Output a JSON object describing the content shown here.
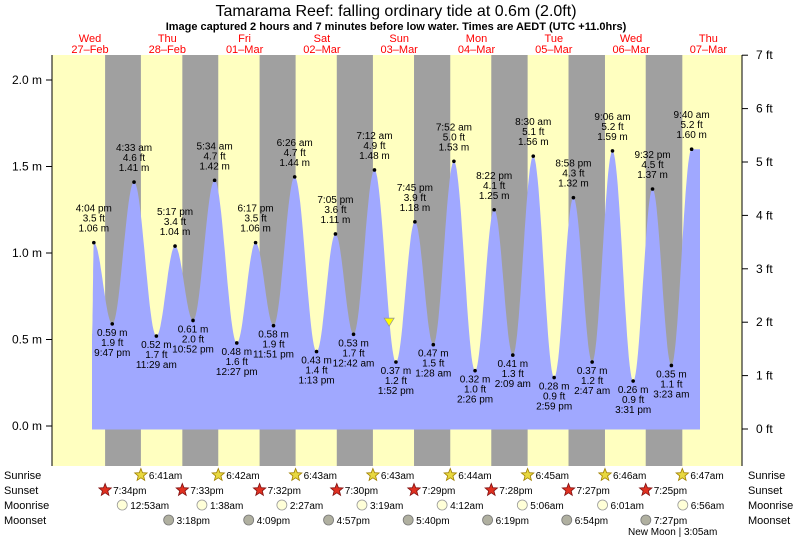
{
  "page": {
    "title": "Tamarama Reef: falling  ordinary tide at 0.6m (2.0ft)",
    "subtitle": "Image captured 2 hours and 7 minutes before low water. Times are AEDT (UTC +11.0hrs)"
  },
  "colors": {
    "day": "#ffffc0",
    "night": "#a0a0a0",
    "tide": "#a0a8ff",
    "day_label": "#ff0000",
    "current_marker": "#ffff00"
  },
  "chart_data": {
    "type": "area",
    "title": "Tamarama Reef: falling  ordinary tide at 0.6m (2.0ft)",
    "y_left_unit": "m",
    "y_right_unit": "ft",
    "ylim_m": [
      -0.18,
      2.1
    ],
    "y_left_ticks": [
      0.0,
      0.5,
      1.0,
      1.5,
      2.0
    ],
    "y_left_tick_labels": [
      "0.0 m",
      "0.5 m",
      "1.0 m",
      "1.5 m",
      "2.0 m"
    ],
    "y_right_ticks_ft": [
      0,
      1,
      2,
      3,
      4,
      5,
      6,
      7
    ],
    "y_right_tick_labels": [
      "0 ft",
      "1 ft",
      "2 ft",
      "3 ft",
      "4 ft",
      "5 ft",
      "6 ft",
      "7 ft"
    ],
    "x_start": "27-Feb 12:00pm",
    "days": [
      {
        "dow": "Wed",
        "date": "27–Feb"
      },
      {
        "dow": "Thu",
        "date": "28–Feb"
      },
      {
        "dow": "Fri",
        "date": "01–Mar"
      },
      {
        "dow": "Sat",
        "date": "02–Mar"
      },
      {
        "dow": "Sun",
        "date": "03–Mar"
      },
      {
        "dow": "Mon",
        "date": "04–Mar"
      },
      {
        "dow": "Tue",
        "date": "05–Mar"
      },
      {
        "dow": "Wed",
        "date": "06–Mar"
      },
      {
        "dow": "Thu",
        "date": "07–Mar"
      }
    ],
    "tides": [
      {
        "type": "high",
        "day": 27,
        "time": "4:04 pm",
        "ft": "3.5 ft",
        "m": 1.06,
        "label_m": "1.06 m"
      },
      {
        "type": "low",
        "day": 27,
        "time": "9:47 pm",
        "ft": "1.9 ft",
        "m": 0.59,
        "label_m": "0.59 m"
      },
      {
        "type": "high",
        "day": 28,
        "time": "4:33 am",
        "ft": "4.6 ft",
        "m": 1.41,
        "label_m": "1.41 m"
      },
      {
        "type": "low",
        "day": 28,
        "time": "11:29 am",
        "ft": "1.7 ft",
        "m": 0.52,
        "label_m": "0.52 m"
      },
      {
        "type": "high",
        "day": 28,
        "time": "5:17 pm",
        "ft": "3.4 ft",
        "m": 1.04,
        "label_m": "1.04 m"
      },
      {
        "type": "low",
        "day": 28,
        "time": "10:52 pm",
        "ft": "2.0 ft",
        "m": 0.61,
        "label_m": "0.61 m"
      },
      {
        "type": "high",
        "day": 29,
        "time": "5:34 am",
        "ft": "4.7 ft",
        "m": 1.42,
        "label_m": "1.42 m"
      },
      {
        "type": "low",
        "day": 29,
        "time": "12:27 pm",
        "ft": "1.6 ft",
        "m": 0.48,
        "label_m": "0.48 m"
      },
      {
        "type": "high",
        "day": 29,
        "time": "6:17 pm",
        "ft": "3.5 ft",
        "m": 1.06,
        "label_m": "1.06 m"
      },
      {
        "type": "low",
        "day": 29,
        "time": "11:51 pm",
        "ft": "1.9 ft",
        "m": 0.58,
        "label_m": "0.58 m"
      },
      {
        "type": "high",
        "day": 30,
        "time": "6:26 am",
        "ft": "4.7 ft",
        "m": 1.44,
        "label_m": "1.44 m"
      },
      {
        "type": "low",
        "day": 30,
        "time": "1:13 pm",
        "ft": "1.4 ft",
        "m": 0.43,
        "label_m": "0.43 m"
      },
      {
        "type": "high",
        "day": 30,
        "time": "7:05 pm",
        "ft": "3.6 ft",
        "m": 1.11,
        "label_m": "1.11 m"
      },
      {
        "type": "low",
        "day": 31,
        "time": "12:42 am",
        "ft": "1.7 ft",
        "m": 0.53,
        "label_m": "0.53 m"
      },
      {
        "type": "high",
        "day": 31,
        "time": "7:12 am",
        "ft": "4.9 ft",
        "m": 1.48,
        "label_m": "1.48 m"
      },
      {
        "type": "low",
        "day": 31,
        "time": "1:52 pm",
        "ft": "1.2 ft",
        "m": 0.37,
        "label_m": "0.37 m"
      },
      {
        "type": "high",
        "day": 31,
        "time": "7:45 pm",
        "ft": "3.9 ft",
        "m": 1.18,
        "label_m": "1.18 m"
      },
      {
        "type": "low",
        "day": 32,
        "time": "1:28 am",
        "ft": "1.5 ft",
        "m": 0.47,
        "label_m": "0.47 m"
      },
      {
        "type": "high",
        "day": 32,
        "time": "7:52 am",
        "ft": "5.0 ft",
        "m": 1.53,
        "label_m": "1.53 m"
      },
      {
        "type": "low",
        "day": 32,
        "time": "2:26 pm",
        "ft": "1.0 ft",
        "m": 0.32,
        "label_m": "0.32 m"
      },
      {
        "type": "high",
        "day": 32,
        "time": "8:22 pm",
        "ft": "4.1 ft",
        "m": 1.25,
        "label_m": "1.25 m"
      },
      {
        "type": "low",
        "day": 33,
        "time": "2:09 am",
        "ft": "1.3 ft",
        "m": 0.41,
        "label_m": "0.41 m"
      },
      {
        "type": "high",
        "day": 33,
        "time": "8:30 am",
        "ft": "5.1 ft",
        "m": 1.56,
        "label_m": "1.56 m"
      },
      {
        "type": "low",
        "day": 33,
        "time": "2:59 pm",
        "ft": "0.9 ft",
        "m": 0.28,
        "label_m": "0.28 m"
      },
      {
        "type": "high",
        "day": 33,
        "time": "8:58 pm",
        "ft": "4.3 ft",
        "m": 1.32,
        "label_m": "1.32 m"
      },
      {
        "type": "low",
        "day": 34,
        "time": "2:47 am",
        "ft": "1.2 ft",
        "m": 0.37,
        "label_m": "0.37 m"
      },
      {
        "type": "high",
        "day": 34,
        "time": "9:06 am",
        "ft": "5.2 ft",
        "m": 1.59,
        "label_m": "1.59 m"
      },
      {
        "type": "low",
        "day": 34,
        "time": "3:31 pm",
        "ft": "0.9 ft",
        "m": 0.26,
        "label_m": "0.26 m"
      },
      {
        "type": "high",
        "day": 34,
        "time": "9:32 pm",
        "ft": "4.5 ft",
        "m": 1.37,
        "label_m": "1.37 m"
      },
      {
        "type": "low",
        "day": 35,
        "time": "3:23 am",
        "ft": "1.1 ft",
        "m": 0.35,
        "label_m": "0.35 m"
      },
      {
        "type": "high",
        "day": 35,
        "time": "9:40 am",
        "ft": "5.2 ft",
        "m": 1.6,
        "label_m": "1.60 m"
      }
    ],
    "current": {
      "day": 31,
      "time": "11:45 am",
      "m": 0.6
    },
    "nights": [
      {
        "day": 27,
        "sunset": "7:34pm",
        "next_sunrise": "6:41am"
      },
      {
        "day": 28,
        "sunset": "7:33pm",
        "next_sunrise": "6:42am"
      },
      {
        "day": 29,
        "sunset": "7:32pm",
        "next_sunrise": "6:43am"
      },
      {
        "day": 30,
        "sunset": "7:30pm",
        "next_sunrise": "6:43am"
      },
      {
        "day": 31,
        "sunset": "7:29pm",
        "next_sunrise": "6:44am"
      },
      {
        "day": 32,
        "sunset": "7:28pm",
        "next_sunrise": "6:45am"
      },
      {
        "day": 33,
        "sunset": "7:27pm",
        "next_sunrise": "6:46am"
      },
      {
        "day": 34,
        "sunset": "7:25pm",
        "next_sunrise": "6:47am"
      }
    ]
  },
  "almanac": {
    "row_labels": {
      "sunrise": "Sunrise",
      "sunset": "Sunset",
      "moonrise": "Moonrise",
      "moonset": "Moonset"
    },
    "sunrise": [
      {
        "day": 28,
        "time": "6:41am"
      },
      {
        "day": 29,
        "time": "6:42am"
      },
      {
        "day": 30,
        "time": "6:43am"
      },
      {
        "day": 31,
        "time": "6:43am"
      },
      {
        "day": 32,
        "time": "6:44am"
      },
      {
        "day": 33,
        "time": "6:45am"
      },
      {
        "day": 34,
        "time": "6:46am"
      },
      {
        "day": 35,
        "time": "6:47am"
      }
    ],
    "sunset": [
      {
        "day": 27,
        "time": "7:34pm"
      },
      {
        "day": 28,
        "time": "7:33pm"
      },
      {
        "day": 29,
        "time": "7:32pm"
      },
      {
        "day": 30,
        "time": "7:30pm"
      },
      {
        "day": 31,
        "time": "7:29pm"
      },
      {
        "day": 32,
        "time": "7:28pm"
      },
      {
        "day": 33,
        "time": "7:27pm"
      },
      {
        "day": 34,
        "time": "7:25pm"
      }
    ],
    "moonrise": [
      {
        "day": 28,
        "time": "12:53am"
      },
      {
        "day": 29,
        "time": "1:38am"
      },
      {
        "day": 30,
        "time": "2:27am"
      },
      {
        "day": 31,
        "time": "3:19am"
      },
      {
        "day": 32,
        "time": "4:12am"
      },
      {
        "day": 33,
        "time": "5:06am"
      },
      {
        "day": 34,
        "time": "6:01am"
      },
      {
        "day": 35,
        "time": "6:56am"
      }
    ],
    "moonset": [
      {
        "day": 28,
        "time": "3:18pm"
      },
      {
        "day": 29,
        "time": "4:09pm"
      },
      {
        "day": 30,
        "time": "4:57pm"
      },
      {
        "day": 31,
        "time": "5:40pm"
      },
      {
        "day": 32,
        "time": "6:19pm"
      },
      {
        "day": 33,
        "time": "6:54pm"
      },
      {
        "day": 34,
        "time": "7:27pm"
      }
    ],
    "moon_phase": "New Moon | 3:05am"
  }
}
